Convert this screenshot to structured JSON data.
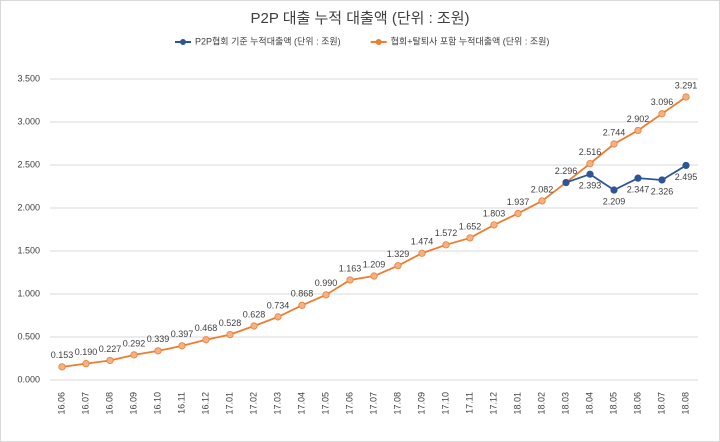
{
  "chart_data": {
    "type": "line",
    "title": "P2P 대출 누적 대출액 (단위 : 조원)",
    "categories": [
      "16.06",
      "16.07",
      "16.08",
      "16.09",
      "16.10",
      "16.11",
      "16.12",
      "17.01",
      "17.02",
      "17.03",
      "17.04",
      "17.05",
      "17.06",
      "17.07",
      "17.08",
      "17.09",
      "17.10",
      "17.11",
      "17.12",
      "18.01",
      "18.02",
      "18.03",
      "18.04",
      "18.05",
      "18.06",
      "18.07",
      "18.08"
    ],
    "series": [
      {
        "name": "P2P협회 기준 누적대출액 (단위 : 조원)",
        "color": "#2e5597",
        "values": [
          null,
          null,
          null,
          null,
          null,
          null,
          null,
          null,
          null,
          null,
          null,
          null,
          null,
          null,
          null,
          null,
          null,
          null,
          null,
          null,
          null,
          2.296,
          2.393,
          2.209,
          2.347,
          2.326,
          2.495
        ],
        "value_labels": [
          null,
          null,
          null,
          null,
          null,
          null,
          null,
          null,
          null,
          null,
          null,
          null,
          null,
          null,
          null,
          null,
          null,
          null,
          null,
          null,
          null,
          null,
          "2.393",
          "2.209",
          "2.347",
          "2.326",
          "2.495"
        ]
      },
      {
        "name": "협회+탈퇴사 포함 누적대출액 (단위 : 조원)",
        "color": "#ed7d31",
        "values": [
          0.153,
          0.19,
          0.227,
          0.292,
          0.339,
          0.397,
          0.468,
          0.528,
          0.628,
          0.734,
          0.868,
          0.99,
          1.163,
          1.209,
          1.329,
          1.474,
          1.572,
          1.652,
          1.803,
          1.937,
          2.082,
          2.296,
          2.516,
          2.744,
          2.902,
          3.096,
          3.291
        ],
        "value_labels": [
          "0.153",
          "0.190",
          "0.227",
          "0.292",
          "0.339",
          "0.397",
          "0.468",
          "0.528",
          "0.628",
          "0.734",
          "0.868",
          "0.990",
          "1.163",
          "1.209",
          "1.329",
          "1.474",
          "1.572",
          "1.652",
          "1.803",
          "1.937",
          "2.082",
          "2.296",
          "2.516",
          "2.744",
          "2.902",
          "3.096",
          "3.291"
        ]
      }
    ],
    "ylim": [
      0,
      3.5
    ],
    "yticks": [
      {
        "value": 0,
        "label": "0.000"
      },
      {
        "value": 0.5,
        "label": "0.500"
      },
      {
        "value": 1,
        "label": "1.000"
      },
      {
        "value": 1.5,
        "label": "1.500"
      },
      {
        "value": 2,
        "label": "2.000"
      },
      {
        "value": 2.5,
        "label": "2.500"
      },
      {
        "value": 3,
        "label": "3.000"
      },
      {
        "value": 3.5,
        "label": "3.500"
      }
    ],
    "grid": true,
    "legend": "top"
  }
}
